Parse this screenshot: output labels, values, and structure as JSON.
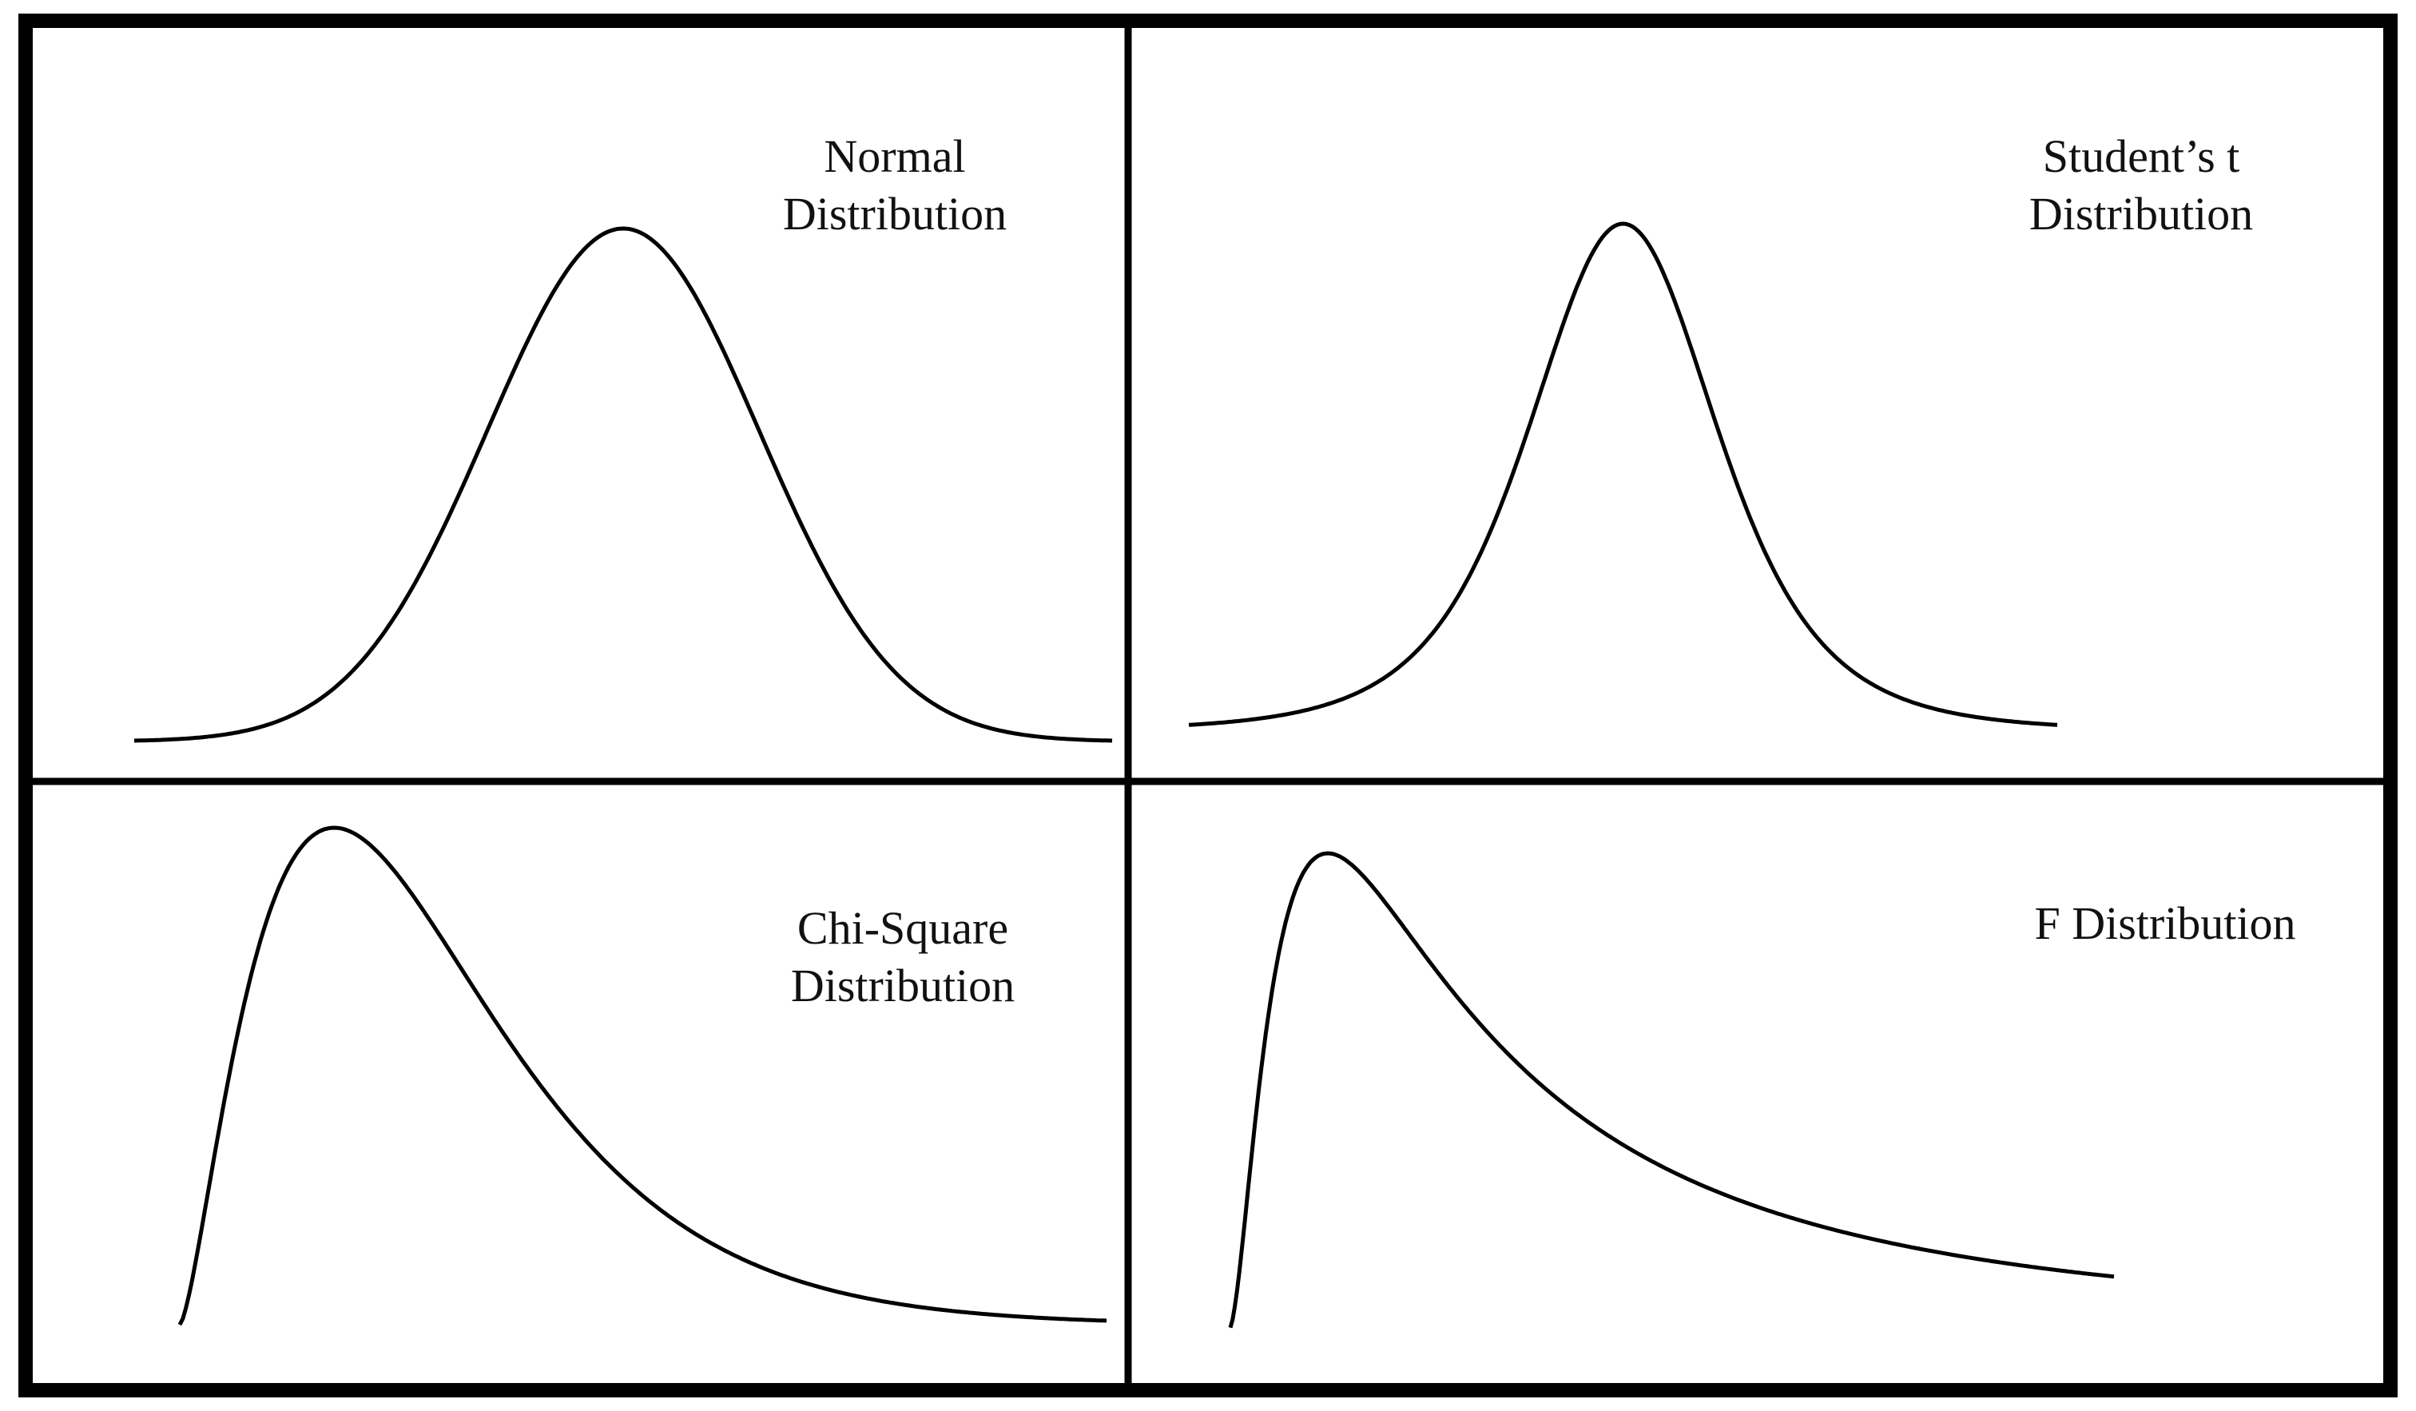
{
  "panels": [
    {
      "id": "normal",
      "label": "Normal\nDistribution"
    },
    {
      "id": "student-t",
      "label": "Student’s t\nDistribution"
    },
    {
      "id": "chi-square",
      "label": "Chi-Square\nDistribution"
    },
    {
      "id": "f",
      "label": "F  Distribution"
    }
  ],
  "colors": {
    "line": "#000000",
    "background": "#ffffff",
    "text": "#111111"
  }
}
